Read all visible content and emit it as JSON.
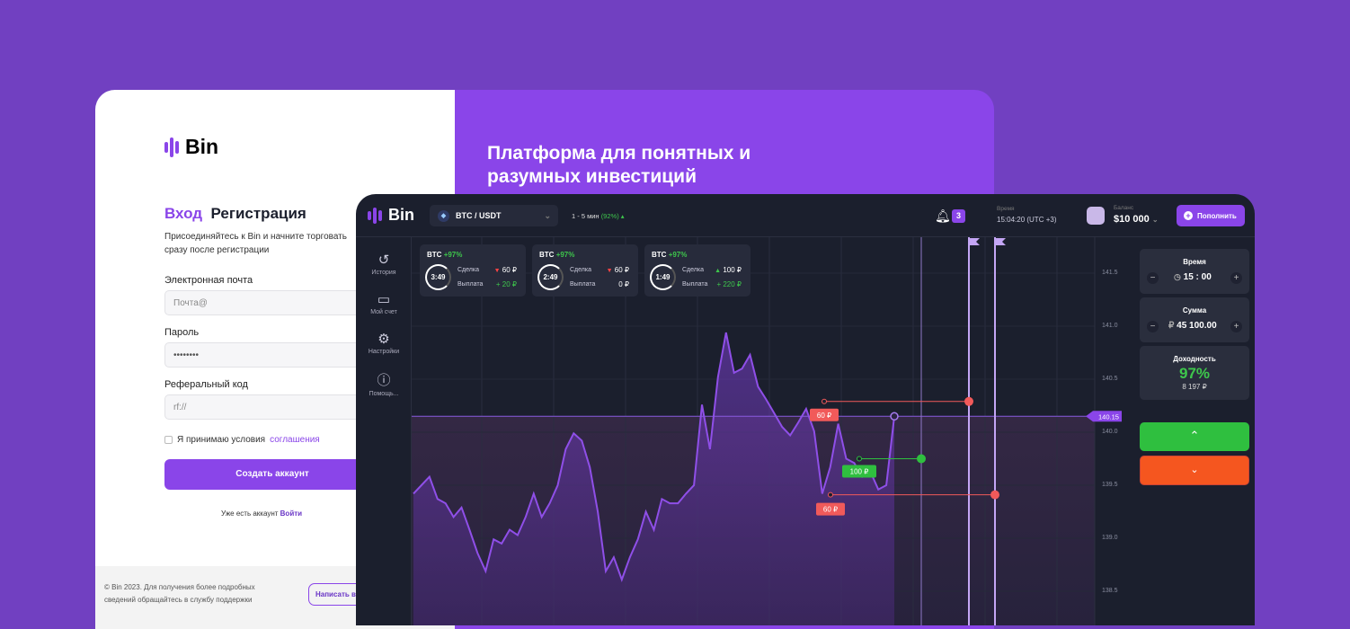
{
  "login": {
    "brand": "Bin",
    "tab_login": "Вход",
    "tab_register": "Регистрация",
    "intro": "Присоединяйтесь к Bin и начните торговать сразу после регистрации",
    "email_label": "Электронная почта",
    "email_placeholder": "Почта@",
    "password_label": "Пароль",
    "password_value": "••••••••",
    "ref_label": "Реферальный код",
    "ref_placeholder": "rf://",
    "agree_text": "Я принимаю условия",
    "agree_link": "соглашения",
    "create_button": "Создать аккаунт",
    "have_account": "Уже есть аккаунт",
    "login_link": "Войти",
    "footer_text": "© Bin 2023. Для получения более подробных сведений обращайтесь в службу поддержки",
    "support_button": "Написать в"
  },
  "promo": {
    "headline": "Платформа для понятных и разумных инвестиций"
  },
  "app": {
    "brand": "Bin",
    "pair": "BTC / USDT",
    "timeframe": "1 - 5 мин",
    "payout_pct": "(92%)",
    "notif_count": "3",
    "time_label": "Время",
    "time_value": "15:04:20 (UTC +3)",
    "balance_label": "Баланс",
    "balance_value": "$10 000",
    "deposit_button": "Пополнить",
    "sidebar": [
      {
        "label": "История",
        "icon": "history-icon"
      },
      {
        "label": "Мой счет",
        "icon": "briefcase-icon"
      },
      {
        "label": "Настройки",
        "icon": "gear-icon"
      },
      {
        "label": "Помощь...",
        "icon": "help-icon"
      }
    ],
    "trades": [
      {
        "asset": "BTC",
        "pct": "+97%",
        "timer": "3:49",
        "deal_label": "Сделка",
        "deal": "60 ₽",
        "dir": "down",
        "payout_label": "Выплата",
        "payout": "+ 20 ₽"
      },
      {
        "asset": "BTC",
        "pct": "+97%",
        "timer": "2:49",
        "deal_label": "Сделка",
        "deal": "60 ₽",
        "dir": "down",
        "payout_label": "Выплата",
        "payout": "0 ₽"
      },
      {
        "asset": "BTC",
        "pct": "+97%",
        "timer": "1:49",
        "deal_label": "Сделка",
        "deal": "100 ₽",
        "dir": "up",
        "payout_label": "Выплата",
        "payout": "+ 220 ₽"
      }
    ],
    "panel": {
      "time_label": "Время",
      "time_value": "15 : 00",
      "sum_label": "Сумма",
      "currency": "₽",
      "sum_value": "45 100.00",
      "yield_label": "Доходность",
      "yield_pct": "97%",
      "yield_amount": "8 197 ₽"
    },
    "colors": {
      "up": "#2fbf3f",
      "down": "#f5561f",
      "accent": "#8a45e9"
    }
  },
  "chart_data": {
    "type": "line",
    "yticks": [
      "141.5",
      "141.0",
      "140.5",
      "140.0",
      "139.5",
      "139.0",
      "138.5"
    ],
    "ylim": [
      138.5,
      141.5
    ],
    "current_price": "140.15",
    "values": [
      139.42,
      139.5,
      139.58,
      139.37,
      139.33,
      139.2,
      139.29,
      139.08,
      138.86,
      138.69,
      138.99,
      138.95,
      139.08,
      139.03,
      139.2,
      139.42,
      139.2,
      139.33,
      139.5,
      139.84,
      139.99,
      139.92,
      139.67,
      139.25,
      138.69,
      138.82,
      138.61,
      138.82,
      138.99,
      139.25,
      139.08,
      139.37,
      139.33,
      139.33,
      139.42,
      139.5,
      140.26,
      139.84,
      140.52,
      140.94,
      140.56,
      140.6,
      140.73,
      140.43,
      140.31,
      140.18,
      140.05,
      139.97,
      140.09,
      140.22,
      140.01,
      139.42,
      139.67,
      140.08,
      139.75,
      139.71,
      139.58,
      139.63,
      139.46,
      139.5,
      140.15
    ],
    "trades": [
      {
        "label": "60 ₽",
        "price": 140.29,
        "dir": "down"
      },
      {
        "label": "100 ₽",
        "price": 139.75,
        "dir": "up"
      },
      {
        "label": "60 ₽",
        "price": 139.41,
        "dir": "down"
      }
    ]
  }
}
